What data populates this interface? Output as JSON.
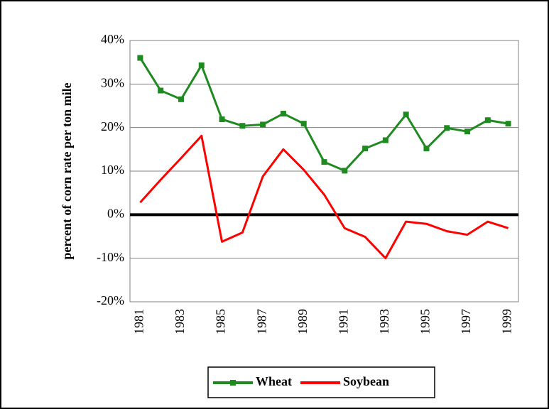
{
  "chart_data": {
    "type": "line",
    "y_label": "percent of corn rate per ton mile",
    "categories": [
      "1981",
      null,
      "1983",
      null,
      "1985",
      null,
      "1987",
      null,
      "1989",
      null,
      "1991",
      null,
      "1993",
      null,
      "1995",
      null,
      "1997",
      null,
      "1999"
    ],
    "series": [
      {
        "name": "Wheat",
        "color": "#1f8a1f",
        "marker": "square",
        "values": [
          36,
          28.5,
          26.5,
          34.3,
          21.9,
          20.4,
          20.7,
          23.2,
          20.9,
          12.1,
          10.1,
          15.2,
          17.1,
          23,
          15.2,
          19.9,
          19.1,
          21.7,
          20.9
        ]
      },
      {
        "name": "Soybean",
        "color": "#ff0000",
        "values": [
          2.8,
          8,
          13,
          18.1,
          -6.2,
          -4.1,
          8.8,
          15,
          10.3,
          4.6,
          -3.1,
          -5.1,
          -10,
          -1.6,
          -2.1,
          -3.8,
          -4.6,
          -1.6,
          -3.1
        ]
      }
    ],
    "ylim": [
      -20,
      40
    ],
    "yticks": [
      {
        "value": -20,
        "label": "-20%"
      },
      {
        "value": -10,
        "label": "-10%"
      },
      {
        "value": 0,
        "label": "0%"
      },
      {
        "value": 10,
        "label": "10%"
      },
      {
        "value": 20,
        "label": "20%"
      },
      {
        "value": 30,
        "label": "30%"
      },
      {
        "value": 40,
        "label": "40%"
      }
    ],
    "grid": true,
    "zero_line": true,
    "legend": "bottom"
  }
}
